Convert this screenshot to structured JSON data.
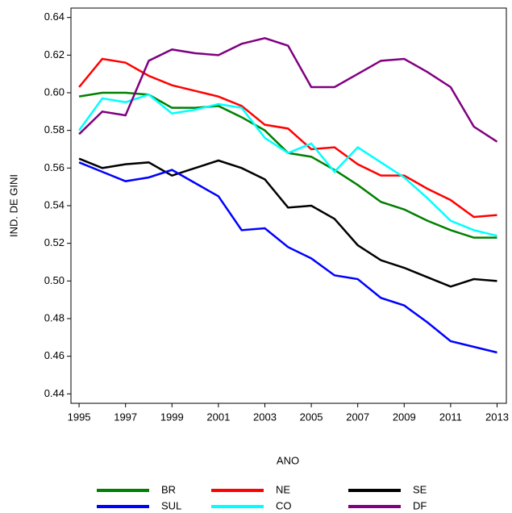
{
  "chart_data": {
    "type": "line",
    "x_label": "ANO",
    "y_label": "IND. DE GINI",
    "x": [
      1995,
      1996,
      1997,
      1998,
      1999,
      2000,
      2001,
      2002,
      2003,
      2004,
      2005,
      2006,
      2007,
      2008,
      2009,
      2010,
      2011,
      2012,
      2013
    ],
    "xlim": [
      1994.65,
      2013.4
    ],
    "xticks": [
      1995,
      1997,
      1999,
      2001,
      2003,
      2005,
      2007,
      2009,
      2011,
      2013
    ],
    "ylim": [
      0.435,
      0.645
    ],
    "yticks": [
      0.44,
      0.46,
      0.48,
      {
        "value": 0.5,
        "label": "0.50"
      },
      0.52,
      0.54,
      0.56,
      0.58,
      {
        "value": 0.6,
        "label": "0.60"
      },
      0.62,
      0.64
    ],
    "series": [
      {
        "name": "BR",
        "color": "#008000",
        "values": [
          0.598,
          0.6,
          0.6,
          0.599,
          0.592,
          0.592,
          0.593,
          0.587,
          0.58,
          0.568,
          0.566,
          0.559,
          0.551,
          0.542,
          0.538,
          0.532,
          0.527,
          0.523,
          0.523
        ]
      },
      {
        "name": "NE",
        "color": "#ff0000",
        "values": [
          0.603,
          0.618,
          0.616,
          0.609,
          0.604,
          0.601,
          0.598,
          0.593,
          0.583,
          0.581,
          0.57,
          0.571,
          0.562,
          0.556,
          0.556,
          0.549,
          0.543,
          0.534,
          0.535
        ]
      },
      {
        "name": "SE",
        "color": "#000000",
        "values": [
          0.565,
          0.56,
          0.562,
          0.563,
          0.556,
          0.56,
          0.564,
          0.56,
          0.554,
          0.539,
          0.54,
          0.533,
          0.519,
          0.511,
          0.507,
          0.502,
          0.497,
          0.501,
          0.5
        ]
      },
      {
        "name": "SUL",
        "color": "#0000ff",
        "values": [
          0.563,
          0.558,
          0.553,
          0.555,
          0.559,
          0.552,
          0.545,
          0.527,
          0.528,
          0.518,
          0.512,
          0.503,
          0.501,
          0.491,
          0.487,
          0.478,
          0.468,
          0.465,
          0.462
        ]
      },
      {
        "name": "CO",
        "color": "#00ffff",
        "values": [
          0.58,
          0.597,
          0.595,
          0.599,
          0.589,
          0.591,
          0.594,
          0.592,
          0.576,
          0.568,
          0.573,
          0.558,
          0.571,
          0.563,
          0.555,
          0.544,
          0.532,
          0.527,
          0.524
        ]
      },
      {
        "name": "DF",
        "color": "#800080",
        "values": [
          0.578,
          0.59,
          0.588,
          0.617,
          0.623,
          0.621,
          0.62,
          0.626,
          0.629,
          0.625,
          0.603,
          0.603,
          0.61,
          0.617,
          0.618,
          0.611,
          0.603,
          0.582,
          0.574
        ]
      }
    ]
  }
}
